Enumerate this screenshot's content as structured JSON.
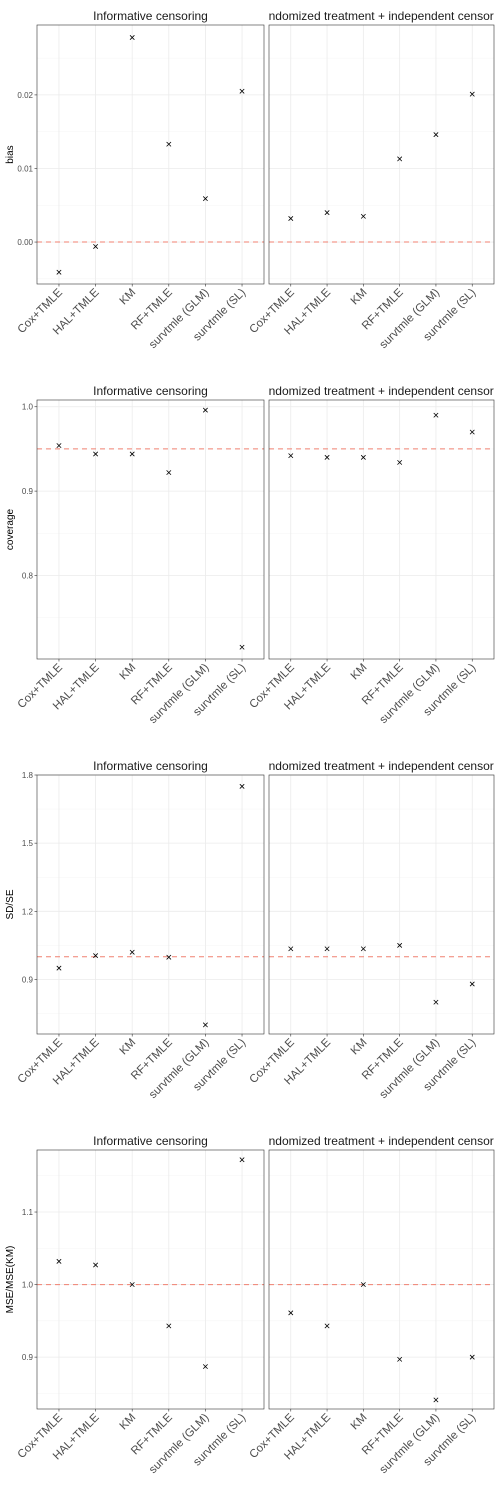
{
  "chart_data": [
    {
      "type": "scatter",
      "ylabel": "bias",
      "reference_line": 0,
      "reference_color": "#f08070",
      "ylim": [
        -0.0057,
        0.0295
      ],
      "yticks": [
        0.0,
        0.01,
        0.02
      ],
      "ytick_labels": [
        "0.00",
        "0.01",
        "0.02"
      ],
      "categories": [
        "Cox+TMLE",
        "HAL+TMLE",
        "KM",
        "RF+TMLE",
        "survtmle (GLM)",
        "survtmle (SL)"
      ],
      "panels": [
        {
          "title": "Informative censoring",
          "values": [
            -0.0041,
            -0.0006,
            0.0278,
            0.0133,
            0.0059,
            0.0205
          ]
        },
        {
          "title": "Randomized treatment + independent censoring",
          "values": [
            0.0032,
            0.004,
            0.0035,
            0.0113,
            0.0146,
            0.0201
          ]
        }
      ]
    },
    {
      "type": "scatter",
      "ylabel": "coverage",
      "reference_line": 0.95,
      "reference_color": "#f08070",
      "ylim": [
        0.701,
        1.008
      ],
      "yticks": [
        0.8,
        0.9,
        1.0
      ],
      "ytick_labels": [
        "0.8",
        "0.9",
        "1.0"
      ],
      "categories": [
        "Cox+TMLE",
        "HAL+TMLE",
        "KM",
        "RF+TMLE",
        "survtmle (GLM)",
        "survtmle (SL)"
      ],
      "panels": [
        {
          "title": "Informative censoring",
          "values": [
            0.954,
            0.944,
            0.944,
            0.922,
            0.996,
            0.715
          ]
        },
        {
          "title": "Randomized treatment + independent censoring",
          "values": [
            0.942,
            0.94,
            0.94,
            0.934,
            0.99,
            0.97
          ]
        }
      ]
    },
    {
      "type": "scatter",
      "ylabel": "SD/SE",
      "reference_line": 1.0,
      "reference_color": "#f08070",
      "ylim": [
        0.66,
        1.8
      ],
      "yticks": [
        0.9,
        1.2,
        1.5,
        1.8
      ],
      "ytick_labels": [
        "0.9",
        "1.2",
        "1.5",
        "1.8"
      ],
      "categories": [
        "Cox+TMLE",
        "HAL+TMLE",
        "KM",
        "RF+TMLE",
        "survtmle (GLM)",
        "survtmle (SL)"
      ],
      "panels": [
        {
          "title": "Informative censoring",
          "values": [
            0.95,
            1.005,
            1.02,
            0.998,
            0.7,
            1.75
          ]
        },
        {
          "title": "Randomized treatment + independent censoring",
          "values": [
            1.035,
            1.035,
            1.035,
            1.05,
            0.8,
            0.88
          ]
        }
      ]
    },
    {
      "type": "scatter",
      "ylabel": "MSE/MSE(KM)",
      "reference_line": 1.0,
      "reference_color": "#f08070",
      "ylim": [
        0.8285,
        1.1855
      ],
      "yticks": [
        0.9,
        1.0,
        1.1
      ],
      "ytick_labels": [
        "0.9",
        "1.0",
        "1.1"
      ],
      "categories": [
        "Cox+TMLE",
        "HAL+TMLE",
        "KM",
        "RF+TMLE",
        "survtmle (GLM)",
        "survtmle (SL)"
      ],
      "panels": [
        {
          "title": "Informative censoring",
          "values": [
            1.032,
            1.027,
            1.0,
            0.943,
            0.887,
            1.172
          ]
        },
        {
          "title": "Randomized treatment + independent censoring",
          "values": [
            0.961,
            0.943,
            1.0,
            0.897,
            0.841,
            0.9
          ]
        }
      ]
    }
  ]
}
